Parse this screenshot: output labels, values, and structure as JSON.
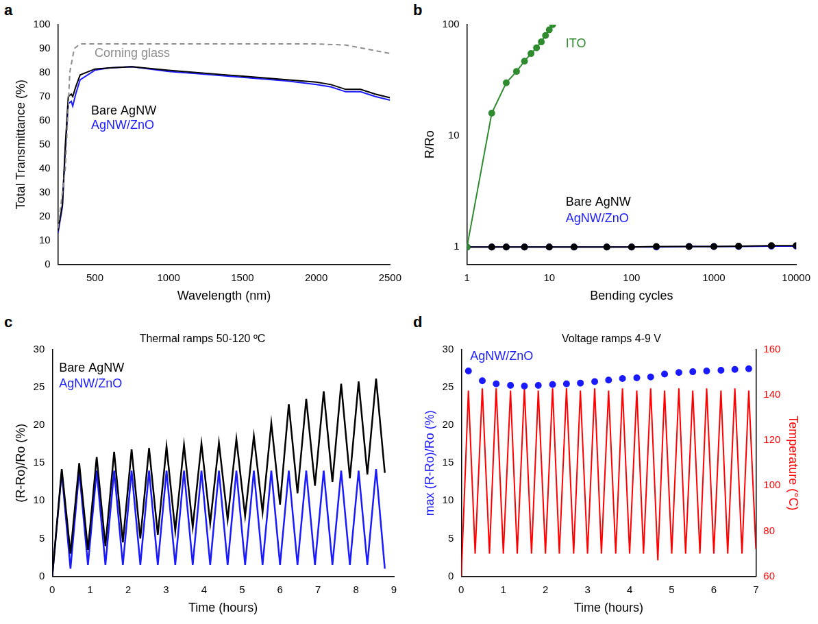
{
  "chart_data": [
    {
      "panel": "a",
      "type": "line",
      "grid": false,
      "x_label": "Wavelength (nm)",
      "y_label": "Total Transmittance (%)",
      "xlim": [
        250,
        2500
      ],
      "xticks": [
        500,
        1000,
        1500,
        2000,
        2500
      ],
      "ylim": [
        0,
        100
      ],
      "yticks": [
        0,
        10,
        20,
        30,
        40,
        50,
        60,
        70,
        80,
        90,
        100
      ],
      "series": [
        {
          "name": "Corning glass",
          "color": "#8c8c8c",
          "line_style": "dashed",
          "marker": "none",
          "x": [
            250,
            300,
            330,
            360,
            400,
            500,
            1000,
            1500,
            2000,
            2200,
            2500
          ],
          "values": [
            15,
            40,
            80,
            90,
            92,
            92,
            92,
            92,
            92,
            91.5,
            88
          ]
        },
        {
          "name": "Bare AgNW",
          "color": "#000000",
          "line_style": "solid",
          "marker": "none",
          "x": [
            250,
            280,
            300,
            320,
            340,
            350,
            370,
            400,
            500,
            600,
            750,
            1000,
            1200,
            1400,
            1500,
            1800,
            2000,
            2100,
            2200,
            2300,
            2400,
            2500
          ],
          "values": [
            14,
            25,
            50,
            70,
            71,
            70,
            74,
            79,
            81.5,
            82,
            82.5,
            81,
            80,
            79,
            78.5,
            77,
            76,
            75,
            73,
            73,
            71,
            69.5
          ]
        },
        {
          "name": "AgNW/ZnO",
          "color": "#1a1aff",
          "line_style": "solid",
          "marker": "none",
          "x": [
            250,
            280,
            300,
            320,
            340,
            350,
            370,
            400,
            500,
            600,
            750,
            1000,
            1200,
            1400,
            1500,
            1800,
            2000,
            2100,
            2200,
            2300,
            2400,
            2500
          ],
          "values": [
            13,
            24,
            48,
            67,
            68,
            66,
            71,
            77,
            81,
            82,
            82.5,
            80.5,
            79.5,
            78.5,
            78,
            76.5,
            75,
            74,
            72,
            72,
            70,
            68.5
          ]
        }
      ]
    },
    {
      "panel": "b",
      "type": "line",
      "grid": false,
      "log": true,
      "x_label": "Bending cycles",
      "y_label": "R/Ro",
      "xlim": [
        1,
        10000
      ],
      "xticks": [
        1,
        10,
        100,
        1000,
        10000
      ],
      "ylim": [
        0.7,
        100
      ],
      "yticks": [
        1,
        10,
        100
      ],
      "series": [
        {
          "name": "ITO",
          "color": "#2e8b2e",
          "line_style": "solid",
          "marker": "circle",
          "x": [
            1,
            2,
            3,
            4,
            5,
            6,
            7,
            8,
            9,
            10,
            11
          ],
          "values": [
            1,
            16,
            30,
            38,
            47,
            55,
            62,
            70,
            80,
            90,
            100
          ]
        },
        {
          "name": "Bare AgNW",
          "color": "#000000",
          "line_style": "solid",
          "marker": "circle",
          "x": [
            1,
            2,
            3,
            5,
            10,
            20,
            50,
            100,
            200,
            500,
            1000,
            2000,
            5000,
            10000
          ],
          "values": [
            1,
            1,
            1,
            1,
            1,
            1,
            1,
            1,
            1.01,
            1.01,
            1.01,
            1.02,
            1.03,
            1.03
          ]
        },
        {
          "name": "AgNW/ZnO",
          "color": "#1a1aff",
          "line_style": "solid",
          "marker": "circle",
          "x": [
            1,
            2,
            3,
            5,
            10,
            20,
            50,
            100,
            200,
            500,
            1000,
            2000,
            5000,
            10000
          ],
          "values": [
            1,
            1,
            1,
            1,
            1,
            1,
            1,
            1,
            1,
            1.01,
            1.01,
            1.01,
            1.02,
            1.02
          ]
        }
      ]
    },
    {
      "panel": "c",
      "type": "line",
      "grid": false,
      "title": "Thermal ramps 50-120 ºC",
      "x_label": "Time (hours)",
      "y_label": "(R-Ro)/Ro (%)",
      "xlim": [
        0,
        9
      ],
      "xticks": [
        0,
        1,
        2,
        3,
        4,
        5,
        6,
        7,
        8,
        9
      ],
      "ylim": [
        0,
        30
      ],
      "yticks": [
        0,
        5,
        10,
        15,
        20,
        25,
        30
      ],
      "series": [
        {
          "name": "Bare AgNW",
          "color": "#000000",
          "line_style": "solid",
          "marker": "none",
          "x": [
            0,
            0.25,
            0.48,
            0.71,
            0.94,
            1.17,
            1.4,
            1.63,
            1.86,
            2.09,
            2.32,
            2.55,
            2.78,
            3.01,
            3.24,
            3.47,
            3.7,
            3.93,
            4.16,
            4.39,
            4.62,
            4.85,
            5.08,
            5.31,
            5.54,
            5.77,
            6.0,
            6.23,
            6.46,
            6.69,
            6.92,
            7.15,
            7.38,
            7.61,
            7.84,
            8.07,
            8.3,
            8.53,
            8.76
          ],
          "values": [
            0,
            14.2,
            3,
            15,
            3.5,
            15.8,
            4,
            16.5,
            4.5,
            16.8,
            5,
            17,
            5.5,
            17.2,
            6,
            17.4,
            6.5,
            17.6,
            7,
            17.7,
            7.5,
            18.2,
            8,
            18.6,
            8.5,
            20.3,
            9.5,
            22.8,
            11,
            23.5,
            12,
            24.5,
            12.5,
            25.5,
            13,
            25.8,
            13.5,
            26.2,
            13.7
          ]
        },
        {
          "name": "AgNW/ZnO",
          "color": "#1a1aff",
          "line_style": "solid",
          "marker": "none",
          "x": [
            0,
            0.25,
            0.48,
            0.71,
            0.94,
            1.17,
            1.4,
            1.63,
            1.86,
            2.09,
            2.32,
            2.55,
            2.78,
            3.01,
            3.24,
            3.47,
            3.7,
            3.93,
            4.16,
            4.39,
            4.62,
            4.85,
            5.08,
            5.31,
            5.54,
            5.77,
            6.0,
            6.23,
            6.46,
            6.69,
            6.92,
            7.15,
            7.38,
            7.61,
            7.84,
            8.07,
            8.3,
            8.53,
            8.76
          ],
          "values": [
            0,
            13.8,
            1,
            14,
            1.5,
            14,
            1.5,
            14,
            1.5,
            14,
            1.5,
            14,
            1.5,
            14,
            1.5,
            14,
            1.5,
            14,
            1.5,
            14,
            1.5,
            14,
            1.5,
            14,
            1.5,
            14,
            1.5,
            14,
            1.5,
            14,
            1.5,
            14,
            1.5,
            14,
            1.5,
            14,
            1.5,
            14.2,
            1
          ]
        }
      ]
    },
    {
      "panel": "d",
      "type": "line",
      "grid": false,
      "title": "Voltage ramps 4-9 V",
      "x_label": "Time (hours)",
      "y_label": "max (R-Ro)/Ro (%)",
      "y2_label": "Temperature (°C)",
      "xlim": [
        0,
        7
      ],
      "xticks": [
        0,
        1,
        2,
        3,
        4,
        5,
        6,
        7
      ],
      "ylim": [
        0,
        30
      ],
      "yticks": [
        0,
        5,
        10,
        15,
        20,
        25,
        30
      ],
      "y2lim": [
        60,
        160
      ],
      "y2ticks": [
        60,
        80,
        100,
        120,
        140,
        160
      ],
      "series": [
        {
          "name": "AgNW/ZnO",
          "color": "#1a1aff",
          "type": "scatter",
          "line_style": "none",
          "marker": "circle",
          "axis": "y",
          "x": [
            0.17,
            0.5,
            0.83,
            1.17,
            1.5,
            1.83,
            2.17,
            2.5,
            2.83,
            3.17,
            3.5,
            3.83,
            4.17,
            4.5,
            4.83,
            5.17,
            5.5,
            5.83,
            6.17,
            6.5,
            6.83
          ],
          "values": [
            27.2,
            25.9,
            25.5,
            25.3,
            25.2,
            25.3,
            25.4,
            25.5,
            25.6,
            25.8,
            26,
            26.2,
            26.3,
            26.4,
            26.8,
            27,
            27.1,
            27.2,
            27.3,
            27.4,
            27.5
          ]
        },
        {
          "color": "#ff0000",
          "type": "line",
          "line_style": "solid",
          "marker": "none",
          "axis": "y2",
          "x": [
            0,
            0.17,
            0.33,
            0.5,
            0.67,
            0.83,
            1.0,
            1.17,
            1.33,
            1.5,
            1.67,
            1.83,
            2.0,
            2.17,
            2.33,
            2.5,
            2.67,
            2.83,
            3.0,
            3.17,
            3.33,
            3.5,
            3.67,
            3.83,
            4.0,
            4.17,
            4.33,
            4.5,
            4.67,
            4.83,
            5.0,
            5.17,
            5.33,
            5.5,
            5.67,
            5.83,
            6.0,
            6.17,
            6.33,
            6.5,
            6.67,
            6.83,
            7.0
          ],
          "values": [
            60,
            142,
            70,
            143,
            70,
            143,
            70,
            142,
            70,
            143,
            70,
            142,
            70,
            143,
            70,
            143,
            70,
            142,
            70,
            143,
            70,
            142,
            70,
            143,
            70,
            142,
            70,
            143,
            67,
            142,
            70,
            143,
            70,
            142,
            70,
            143,
            70,
            142,
            70,
            143,
            70,
            142,
            72
          ]
        }
      ]
    }
  ]
}
